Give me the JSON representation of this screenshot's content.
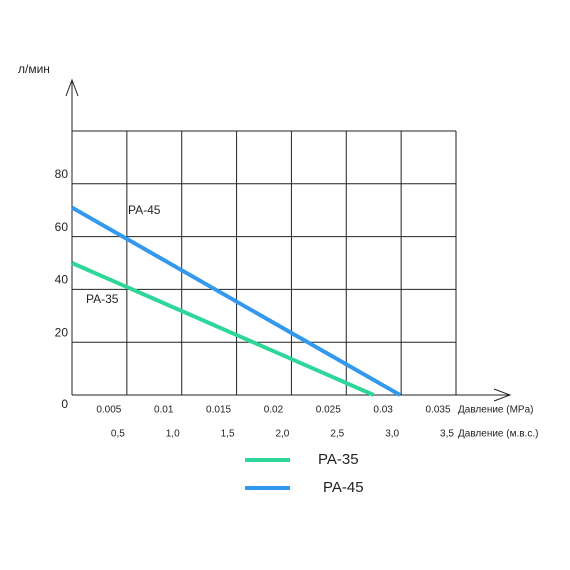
{
  "chart_data": {
    "type": "line",
    "y_label": "л/мин",
    "x_label": "Давление (MPa)",
    "x2_label": "Давление (м.в.с.)",
    "xlim": [
      0,
      0.035
    ],
    "xticks": [
      0.005,
      0.01,
      0.015,
      0.02,
      0.025,
      0.03,
      0.035
    ],
    "x2lim": [
      0,
      3.5
    ],
    "x2ticks": [
      {
        "value": 0.5,
        "label": "0,5"
      },
      {
        "value": 1.0,
        "label": "1,0"
      },
      {
        "value": 1.5,
        "label": "1,5"
      },
      {
        "value": 2.0,
        "label": "2,0"
      },
      {
        "value": 2.5,
        "label": "2,5"
      },
      {
        "value": 3.0,
        "label": "3,0"
      },
      {
        "value": 3.5,
        "label": "3,5"
      }
    ],
    "ylim": [
      0,
      100
    ],
    "yticks": [
      0,
      20,
      40,
      60,
      80
    ],
    "grid": true,
    "series": [
      {
        "name": "PA-35",
        "color": "#2fd69a",
        "x": [
          0,
          0.0275
        ],
        "values": [
          50,
          0
        ]
      },
      {
        "name": "PA-45",
        "color": "#3399ee",
        "x": [
          0,
          0.0299
        ],
        "values": [
          71,
          0
        ]
      }
    ]
  }
}
